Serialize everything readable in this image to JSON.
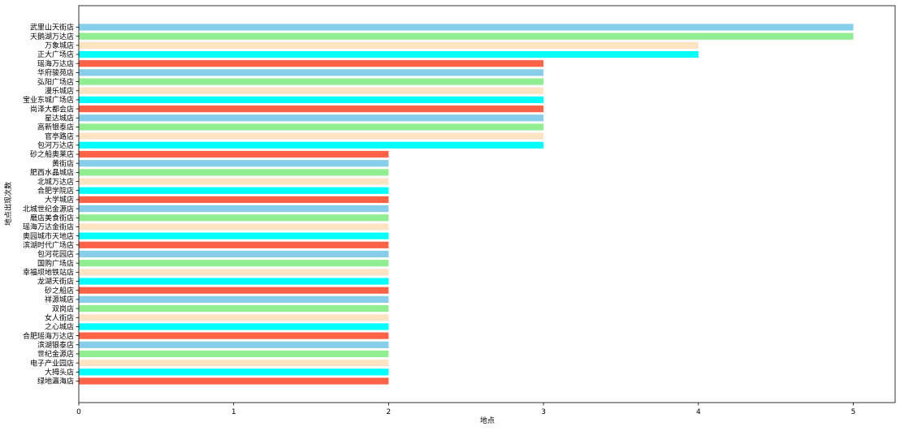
{
  "chart_data": {
    "type": "bar",
    "orientation": "horizontal",
    "title": "",
    "xlabel": "地点",
    "ylabel": "地点出现次数",
    "xlim": [
      0,
      5.27
    ],
    "xticks": [
      0,
      1,
      2,
      3,
      4,
      5
    ],
    "grid": false,
    "legend": "none",
    "categories": [
      "武里山天街店",
      "天鹅湖万达店",
      "万象城店",
      "正大广场店",
      "瑶海万达店",
      "华府骏苑店",
      "弘阳广场店",
      "漫乐城店",
      "宝业东城广场店",
      "尚泽大都会店",
      "星达城店",
      "高新银泰店",
      "官亭路店",
      "包河万达店",
      "砂之船奥莱店",
      "黄街店",
      "肥西水晶城店",
      "北城万达店",
      "合肥学院店",
      "大学城店",
      "北城世纪金源店",
      "磨店美食街店",
      "瑶海万达金街店",
      "奥园城市天地店",
      "滨湖时代广场店",
      "包河花园店",
      "国购广场店",
      "幸福坝地铁站店",
      "龙湖天街店",
      "砂之船店",
      "祥源城店",
      "双岗店",
      "女人街店",
      "之心城店",
      "合肥瑶海万达店",
      "滨湖银泰店",
      "世纪金源店",
      "电子产业园店",
      "大拇头店",
      "绿地瀛海店"
    ],
    "values": [
      5,
      5,
      4,
      4,
      3,
      3,
      3,
      3,
      3,
      3,
      3,
      3,
      3,
      3,
      2,
      2,
      2,
      2,
      2,
      2,
      2,
      2,
      2,
      2,
      2,
      2,
      2,
      2,
      2,
      2,
      2,
      2,
      2,
      2,
      2,
      2,
      2,
      2,
      2,
      2
    ],
    "colors": [
      "#87CEEB",
      "#90EE90",
      "#FFE4C4",
      "#00FFFF",
      "#FF6347"
    ]
  }
}
